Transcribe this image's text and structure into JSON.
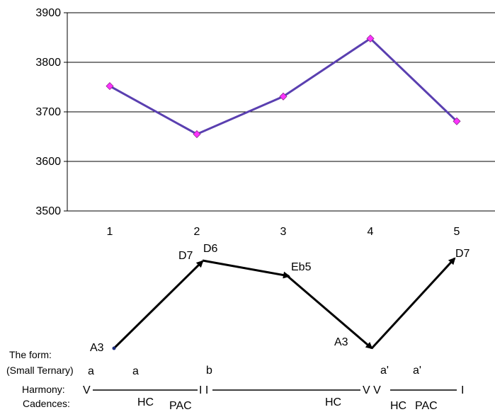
{
  "chart_data": {
    "type": "line",
    "x": [
      1,
      2,
      3,
      4,
      5
    ],
    "values": [
      3752,
      3655,
      3731,
      3848,
      3681
    ],
    "ylim": [
      3500,
      3900
    ],
    "yticks": [
      "3500",
      "3600",
      "3700",
      "3800",
      "3900"
    ],
    "xticks": [
      "1",
      "2",
      "3",
      "4",
      "5"
    ],
    "grid": true,
    "line_color": "#5a3fb0",
    "marker_color": "#ff33ff"
  },
  "contour": {
    "labels": {
      "p1": "A3",
      "p2a": "D7",
      "p2b": "D6",
      "p3": "Eb5",
      "p4": "A3",
      "p5": "D7"
    }
  },
  "analysis": {
    "form_label": "The form:",
    "form_sublabel": "(Small Ternary)",
    "form_a1": "a",
    "form_a2": "a",
    "form_b": "b",
    "form_a3": "a'",
    "form_a4": "a'",
    "harmony_label": "Harmony:",
    "harmony_v1": "V",
    "harmony_ii": "I I",
    "harmony_vv": "V V",
    "harmony_i": "I",
    "cadences_label": "Cadences:",
    "cad_hc1": "HC",
    "cad_pac1": "PAC",
    "cad_hc2": "HC",
    "cad_hc3": "HC",
    "cad_pac2": "PAC"
  }
}
